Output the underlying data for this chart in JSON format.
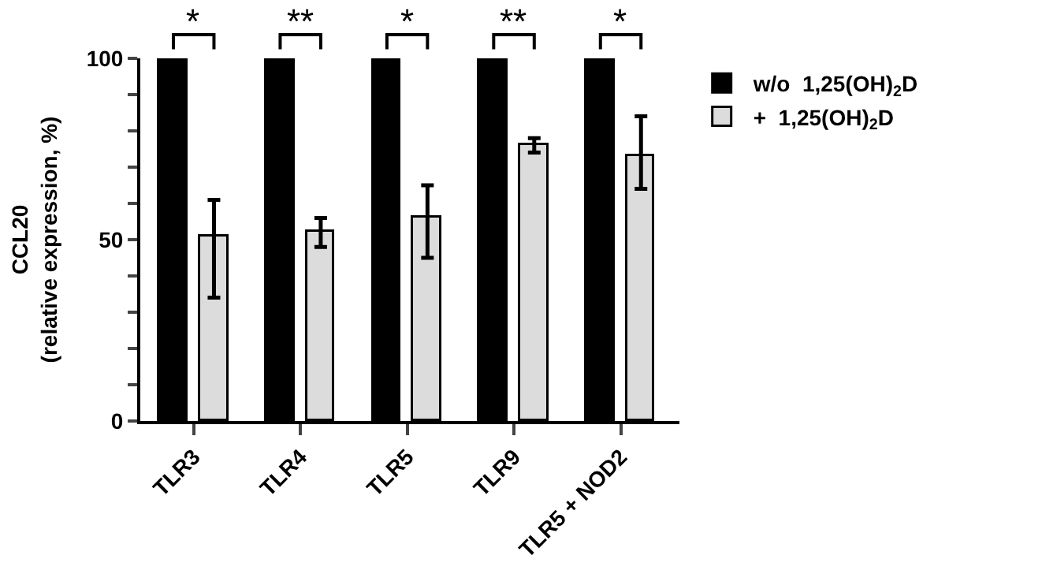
{
  "chart_data": {
    "type": "bar",
    "ylabel": "CCL20\n(relative expression, %)",
    "categories": [
      "TLR3",
      "TLR4",
      "TLR5",
      "TLR9",
      "TLR5 + NOD2"
    ],
    "series": [
      {
        "name": "w/o  1,25(OH)$_{2}$D",
        "color": "#000000",
        "values": [
          100,
          100,
          100,
          100,
          100
        ]
      },
      {
        "name": "+  1,25(OH)$_{2}$D",
        "color": "#dcdcdc",
        "values": [
          51,
          52,
          56,
          76,
          73
        ],
        "errors": [
          [
            34,
            61
          ],
          [
            48,
            56
          ],
          [
            45,
            65
          ],
          [
            74,
            78
          ],
          [
            64,
            84
          ]
        ]
      }
    ],
    "ylim": [
      0,
      100
    ],
    "yticks": [
      0,
      {
        "value": 10,
        "label": null
      },
      {
        "value": 20,
        "label": null
      },
      {
        "value": 30,
        "label": null
      },
      {
        "value": 40,
        "label": null
      },
      50,
      {
        "value": 60,
        "label": null
      },
      {
        "value": 70,
        "label": null
      },
      {
        "value": 80,
        "label": null
      },
      {
        "value": 90,
        "label": null
      },
      100
    ],
    "annotations": [
      "*",
      "**",
      "*",
      "**",
      "*"
    ],
    "legend": "top right"
  }
}
